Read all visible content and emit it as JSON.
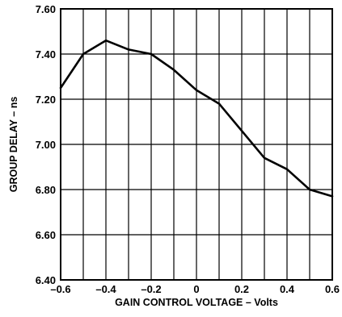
{
  "chart_data": {
    "type": "line",
    "title": "",
    "xlabel": "GAIN CONTROL VOLTAGE – Volts",
    "ylabel": "GROUP DELAY – ns",
    "xlim": [
      -0.6,
      0.6
    ],
    "ylim": [
      6.4,
      7.6
    ],
    "xticks": [
      -0.6,
      -0.4,
      -0.2,
      0,
      0.2,
      0.4,
      0.6
    ],
    "xtick_labels": [
      "–0.6",
      "–0.4",
      "–0.2",
      "0",
      "0.2",
      "0.4",
      "0.6"
    ],
    "yticks": [
      6.4,
      6.6,
      6.8,
      7.0,
      7.2,
      7.4,
      7.6
    ],
    "ytick_labels": [
      "6.40",
      "6.60",
      "6.80",
      "7.00",
      "7.20",
      "7.40",
      "7.60"
    ],
    "x_gridlines": [
      -0.6,
      -0.5,
      -0.4,
      -0.3,
      -0.2,
      -0.1,
      0,
      0.1,
      0.2,
      0.3,
      0.4,
      0.5,
      0.6
    ],
    "y_gridlines": [
      6.4,
      6.6,
      6.8,
      7.0,
      7.2,
      7.4,
      7.6
    ],
    "grid": true,
    "series": [
      {
        "color": "#000000",
        "x": [
          -0.6,
          -0.5,
          -0.4,
          -0.3,
          -0.2,
          -0.1,
          0,
          0.1,
          0.2,
          0.3,
          0.4,
          0.5,
          0.6
        ],
        "y": [
          7.25,
          7.4,
          7.46,
          7.42,
          7.4,
          7.33,
          7.24,
          7.18,
          7.06,
          6.94,
          6.89,
          6.8,
          6.77
        ]
      }
    ]
  }
}
